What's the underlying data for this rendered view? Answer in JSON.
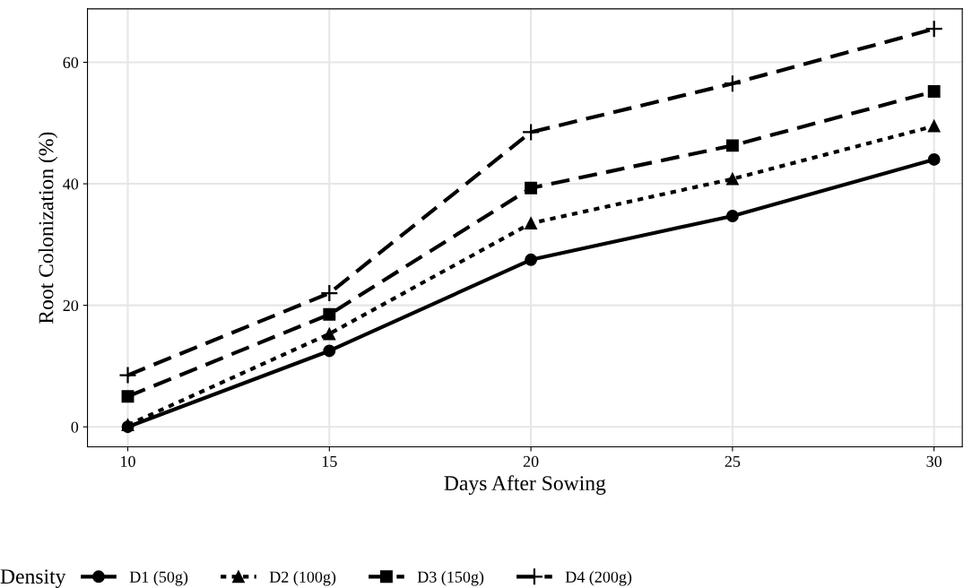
{
  "chart_data": {
    "type": "line",
    "xlabel": "Days After Sowing",
    "ylabel": "Root Colonization (%)",
    "legend_title": "Density",
    "legend": "bottom",
    "grid": true,
    "x": [
      10,
      15,
      20,
      25,
      30
    ],
    "xlim": [
      9,
      30.7
    ],
    "xticks": [
      10,
      15,
      20,
      25,
      30
    ],
    "ylim": [
      -3.3,
      68.8
    ],
    "yticks": [
      0,
      20,
      40,
      60
    ],
    "series": [
      {
        "name": "D1 (50g)",
        "color": "#000000",
        "marker": "circle",
        "line_style": "solid",
        "values": [
          0,
          12.5,
          27.5,
          34.7,
          44.0
        ]
      },
      {
        "name": "D2 (100g)",
        "color": "#000000",
        "marker": "triangle",
        "line_style": "dotted",
        "values": [
          0.3,
          15.3,
          33.5,
          40.8,
          49.5
        ]
      },
      {
        "name": "D3 (150g)",
        "color": "#000000",
        "marker": "square",
        "line_style": "dashed",
        "values": [
          5.0,
          18.5,
          39.3,
          46.3,
          55.2
        ]
      },
      {
        "name": "D4 (200g)",
        "color": "#000000",
        "marker": "cross",
        "line_style": "dashed",
        "values": [
          8.5,
          22.0,
          48.5,
          56.5,
          65.5
        ]
      }
    ]
  }
}
